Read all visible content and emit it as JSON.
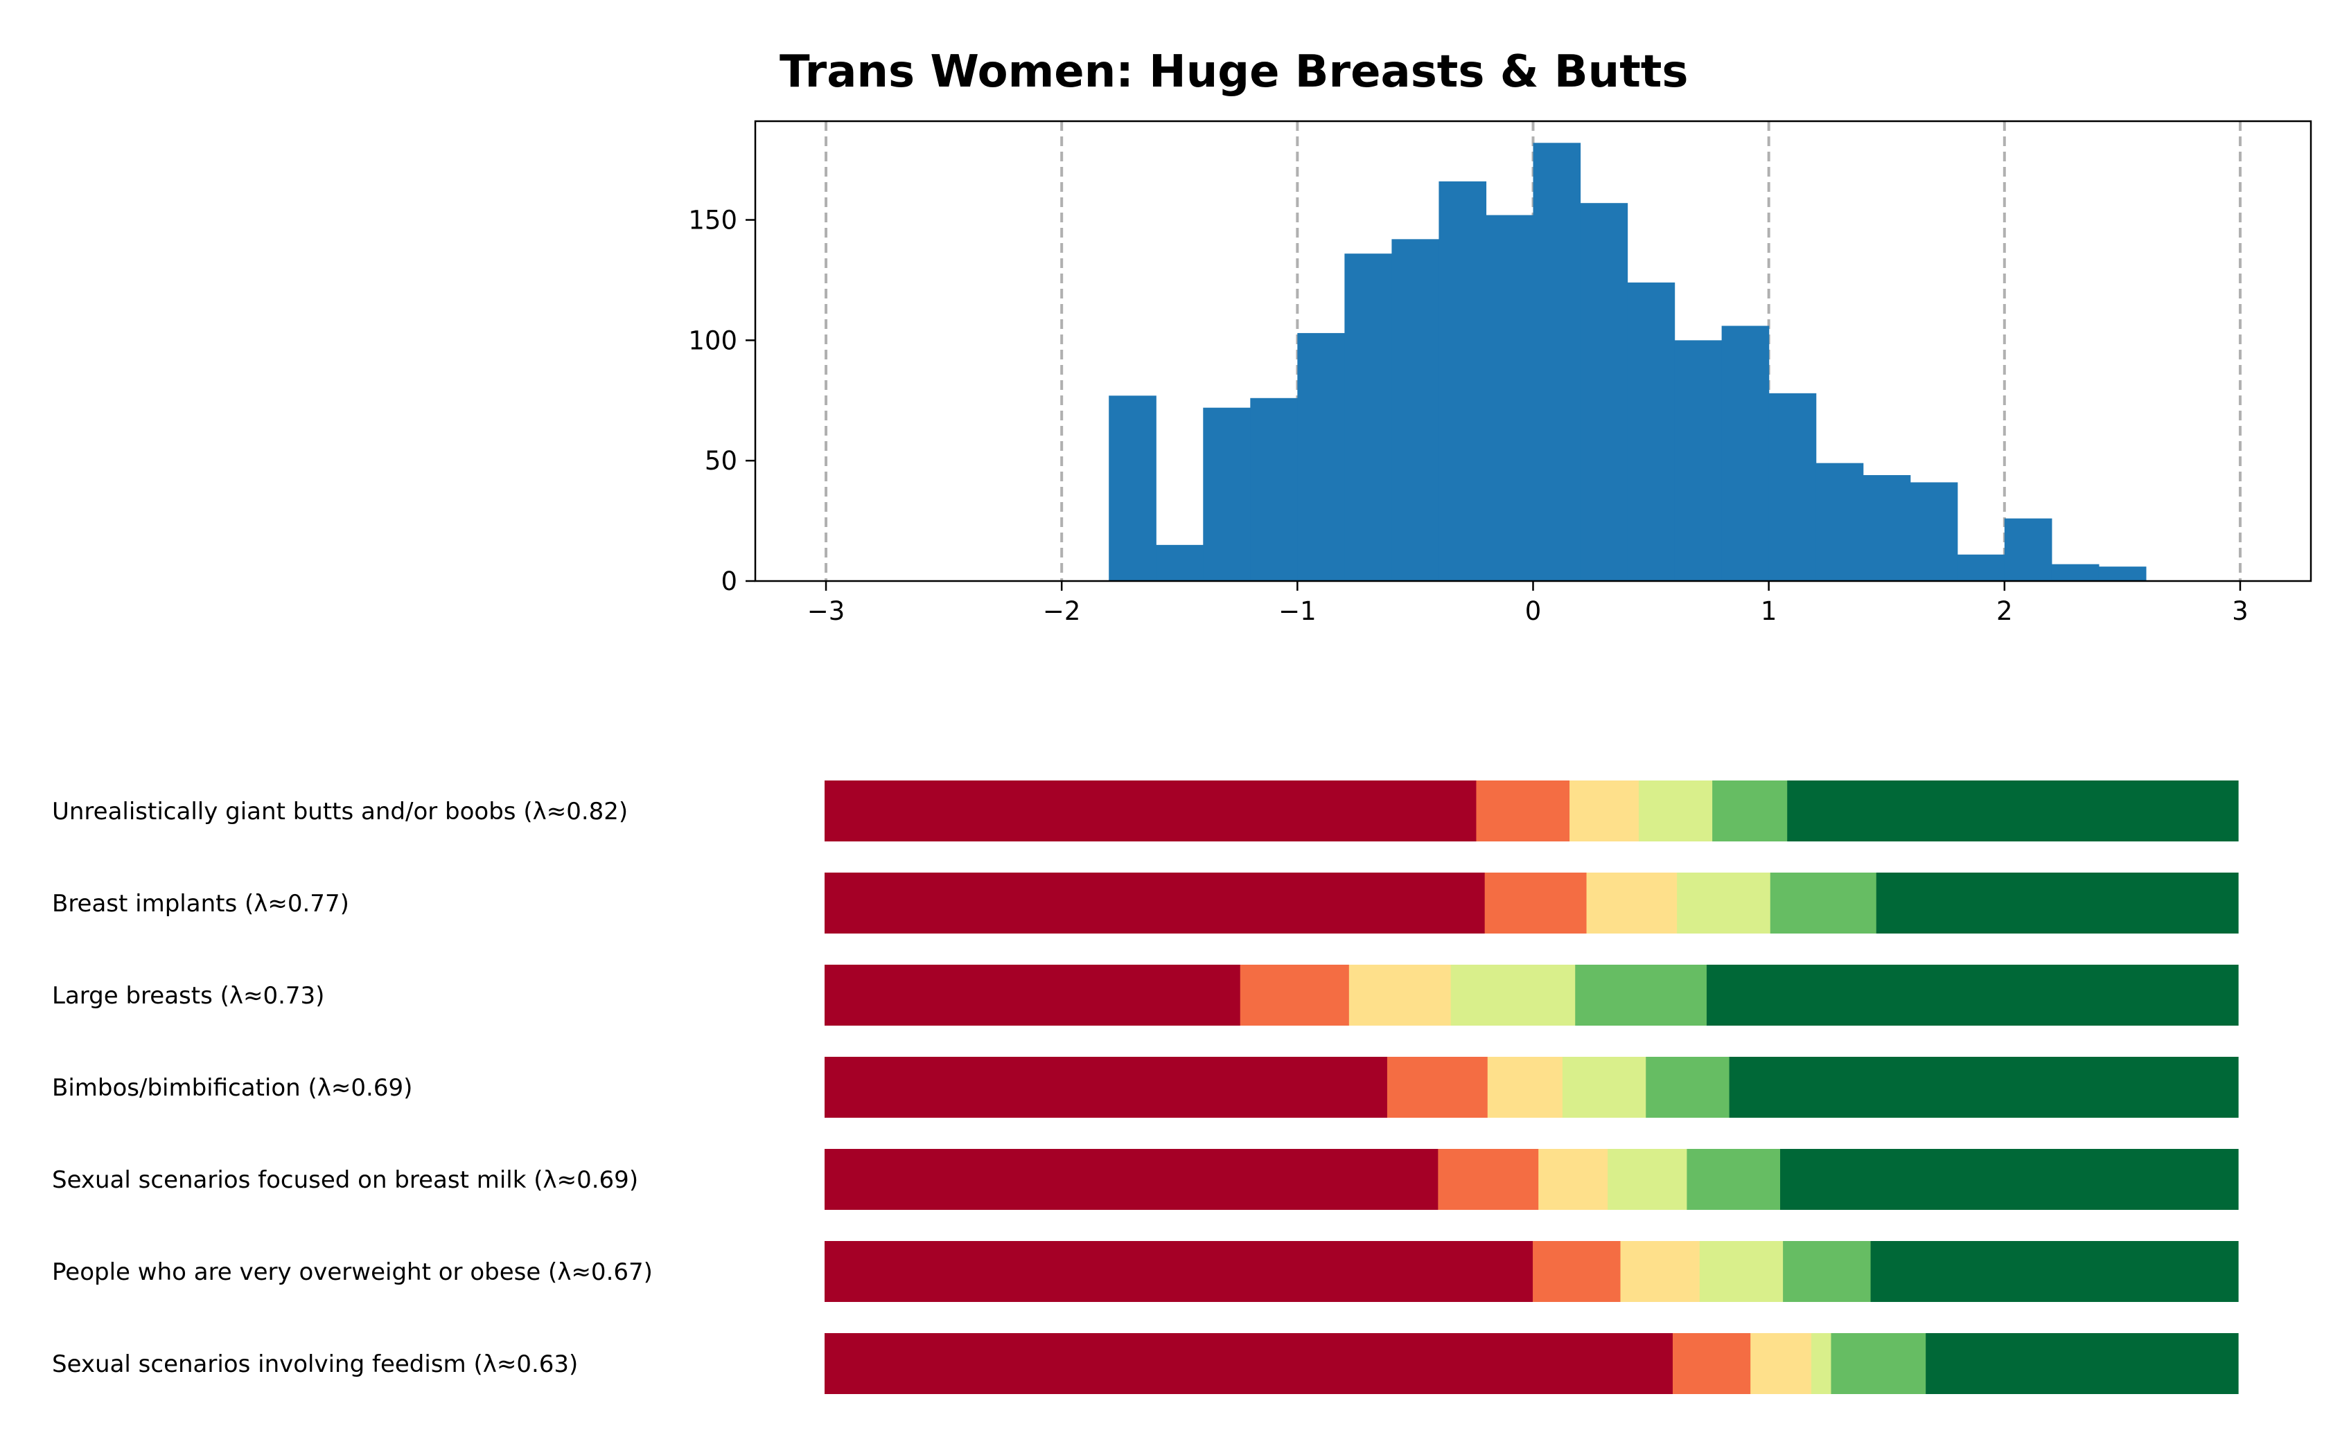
{
  "chart_data": [
    {
      "type": "bar",
      "title": "Trans Women: Huge Breasts & Butts",
      "xlim": [
        -3.3,
        3.3
      ],
      "ylim": [
        0,
        191
      ],
      "xticks": [
        -3,
        -2,
        -1,
        0,
        1,
        2,
        3
      ],
      "xtick_labels": [
        "−3",
        "−2",
        "−1",
        "0",
        "1",
        "2",
        "3"
      ],
      "yticks": [
        0,
        50,
        100,
        150
      ],
      "ytick_labels": [
        "0",
        "50",
        "100",
        "150"
      ],
      "grid": "vertical dashed at x ticks",
      "bin_width": 0.2,
      "bins_left": [
        -1.8,
        -1.6,
        -1.4,
        -1.2,
        -1.0,
        -0.8,
        -0.6,
        -0.4,
        -0.2,
        0.0,
        0.2,
        0.4,
        0.6,
        0.8,
        1.0,
        1.2,
        1.4,
        1.6,
        1.8,
        2.0,
        2.2,
        2.4
      ],
      "counts": [
        77,
        15,
        72,
        76,
        103,
        136,
        142,
        166,
        152,
        182,
        157,
        124,
        100,
        106,
        78,
        49,
        44,
        41,
        11,
        26,
        7,
        6
      ],
      "color": "#1f77b4"
    },
    {
      "type": "bar",
      "orientation": "horizontal-stacked",
      "segment_colors": [
        "#a50026",
        "#f46d43",
        "#fee08b",
        "#d9ef8b",
        "#66bd63",
        "#006837"
      ],
      "rows": [
        {
          "label": "Unrealistically giant butts and/or boobs (λ≈0.82)",
          "segments": [
            46.1,
            6.6,
            4.9,
            5.2,
            5.3,
            31.9
          ]
        },
        {
          "label": "Breast implants (λ≈0.77)",
          "segments": [
            46.7,
            7.2,
            6.4,
            6.6,
            7.5,
            25.6
          ]
        },
        {
          "label": "Large breasts (λ≈0.73)",
          "segments": [
            29.4,
            7.7,
            7.2,
            8.8,
            9.3,
            37.6
          ]
        },
        {
          "label": "Bimbos/bimbification (λ≈0.69)",
          "segments": [
            39.8,
            7.1,
            5.3,
            5.9,
            5.9,
            36.0
          ]
        },
        {
          "label": "Sexual scenarios focused on breast milk (λ≈0.69)",
          "segments": [
            43.4,
            7.1,
            4.9,
            5.6,
            6.6,
            32.4
          ]
        },
        {
          "label": "People who are very overweight or obese (λ≈0.67)",
          "segments": [
            50.1,
            6.2,
            5.6,
            5.9,
            6.2,
            26.0
          ]
        },
        {
          "label": "Sexual scenarios involving feedism (λ≈0.63)",
          "segments": [
            60.0,
            5.5,
            4.3,
            1.4,
            6.7,
            22.1
          ]
        }
      ]
    }
  ]
}
